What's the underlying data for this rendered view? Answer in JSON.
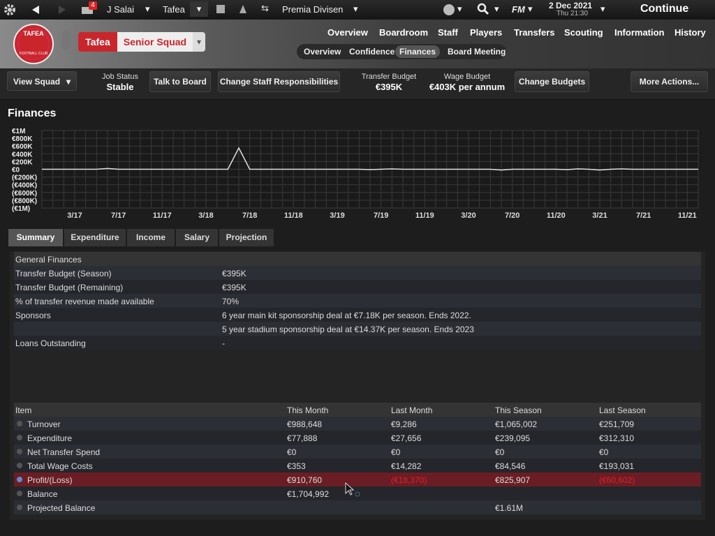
{
  "top_bar": {
    "notifications": "4",
    "manager": "J Salai",
    "club": "Tafea",
    "competition": "Premia Divisen",
    "brand": "FM",
    "date": "2 Dec 2021",
    "time": "Thu 21:30",
    "continue": "Continue"
  },
  "header": {
    "badge_top": "TAFEA",
    "badge_bottom": "FOOTBALL CLUB",
    "club": "Tafea",
    "squad": "Senior Squad",
    "nav": [
      "Overview",
      "Boardroom",
      "Staff",
      "Players",
      "Transfers",
      "Scouting",
      "Information",
      "History"
    ],
    "subnav": [
      "Overview",
      "Confidence",
      "Finances",
      "Board Meeting"
    ]
  },
  "toolbar": {
    "view_squad": "View Squad",
    "job_status_label": "Job Status",
    "job_status": "Stable",
    "talk": "Talk to Board",
    "change_staff": "Change Staff Responsibilities",
    "transfer_budget_label": "Transfer Budget",
    "transfer_budget": "€395K",
    "wage_budget_label": "Wage Budget",
    "wage_budget": "€403K per annum",
    "change_budgets": "Change Budgets",
    "more": "More Actions..."
  },
  "page_title": "Finances",
  "chart_data": {
    "type": "line",
    "categories": [
      null,
      null,
      null,
      "3/17",
      null,
      null,
      null,
      "7/17",
      null,
      null,
      null,
      "11/17",
      null,
      null,
      null,
      "3/18",
      null,
      null,
      null,
      "7/18",
      null,
      null,
      null,
      "11/18",
      null,
      null,
      null,
      "3/19",
      null,
      null,
      null,
      "7/19",
      null,
      null,
      null,
      "11/19",
      null,
      null,
      null,
      "3/20",
      null,
      null,
      null,
      "7/20",
      null,
      null,
      null,
      "11/20",
      null,
      null,
      null,
      "3/21",
      null,
      null,
      null,
      "7/21",
      null,
      null,
      null,
      "11/21",
      null
    ],
    "series": [
      {
        "color": "#e0e0e0",
        "values": [
          0,
          0,
          0,
          0,
          0,
          0,
          20000,
          0,
          0,
          0,
          0,
          0,
          0,
          0,
          0,
          0,
          0,
          0,
          550000,
          0,
          0,
          0,
          0,
          0,
          0,
          0,
          0,
          0,
          0,
          0,
          -10000,
          0,
          10000,
          0,
          0,
          0,
          0,
          0,
          0,
          0,
          0,
          0,
          -20000,
          0,
          0,
          0,
          0,
          0,
          -10000,
          10000,
          0,
          -20000,
          0,
          10000,
          0,
          0,
          0,
          0,
          0,
          0,
          0
        ]
      }
    ],
    "ylim": [
      -1000000,
      1000000
    ],
    "yticks": [
      {
        "value": 1000000,
        "label": "€1M"
      },
      {
        "value": 800000,
        "label": "€800K"
      },
      {
        "value": 600000,
        "label": "€600K"
      },
      {
        "value": 400000,
        "label": "€400K"
      },
      {
        "value": 200000,
        "label": "€200K"
      },
      {
        "value": 0,
        "label": "€0"
      },
      {
        "value": -200000,
        "label": "(€200K)"
      },
      {
        "value": -400000,
        "label": "(€400K)"
      },
      {
        "value": -600000,
        "label": "(€600K)"
      },
      {
        "value": -800000,
        "label": "(€800K)"
      },
      {
        "value": -1000000,
        "label": "(€1M)"
      }
    ],
    "grid": true
  },
  "tabs": [
    "Summary",
    "Expenditure",
    "Income",
    "Salary",
    "Projection"
  ],
  "general": {
    "title": "General Finances",
    "rows": [
      {
        "label": "Transfer Budget (Season)",
        "value": "€395K"
      },
      {
        "label": "Transfer Budget (Remaining)",
        "value": "€395K"
      },
      {
        "label": "% of transfer revenue made available",
        "value": "70%"
      },
      {
        "label": "Sponsors",
        "value": "6 year main kit sponsorship deal at €7.18K per season. Ends 2022."
      },
      {
        "value": "5 year stadium sponsorship deal at €14.37K per season. Ends 2023"
      },
      {
        "label": "Loans Outstanding",
        "value": "-"
      }
    ]
  },
  "items": {
    "columns": [
      "Item",
      "This Month",
      "Last Month",
      "This Season",
      "Last Season"
    ],
    "rows": [
      {
        "item": "Turnover",
        "values": [
          "€988,648",
          "€9,286",
          "€1,065,002",
          "€251,709"
        ]
      },
      {
        "item": "Expenditure",
        "values": [
          "€77,888",
          "€27,656",
          "€239,095",
          "€312,310"
        ]
      },
      {
        "item": "Net Transfer Spend",
        "values": [
          "€0",
          "€0",
          "€0",
          "€0"
        ]
      },
      {
        "item": "Total Wage Costs",
        "values": [
          "€353",
          "€14,282",
          "€84,546",
          "€193,031"
        ]
      },
      {
        "item": "Profit/(Loss)",
        "values": [
          "€910,760",
          "(€18,370)",
          "€825,907",
          "(€60,602)"
        ],
        "selected": true,
        "red_cells": [
          1,
          3
        ]
      },
      {
        "item": "Balance",
        "values": [
          "€1,704,992",
          null,
          null,
          null
        ]
      },
      {
        "item": "Projected Balance",
        "values": [
          null,
          null,
          "€1.61M",
          null
        ]
      }
    ]
  }
}
